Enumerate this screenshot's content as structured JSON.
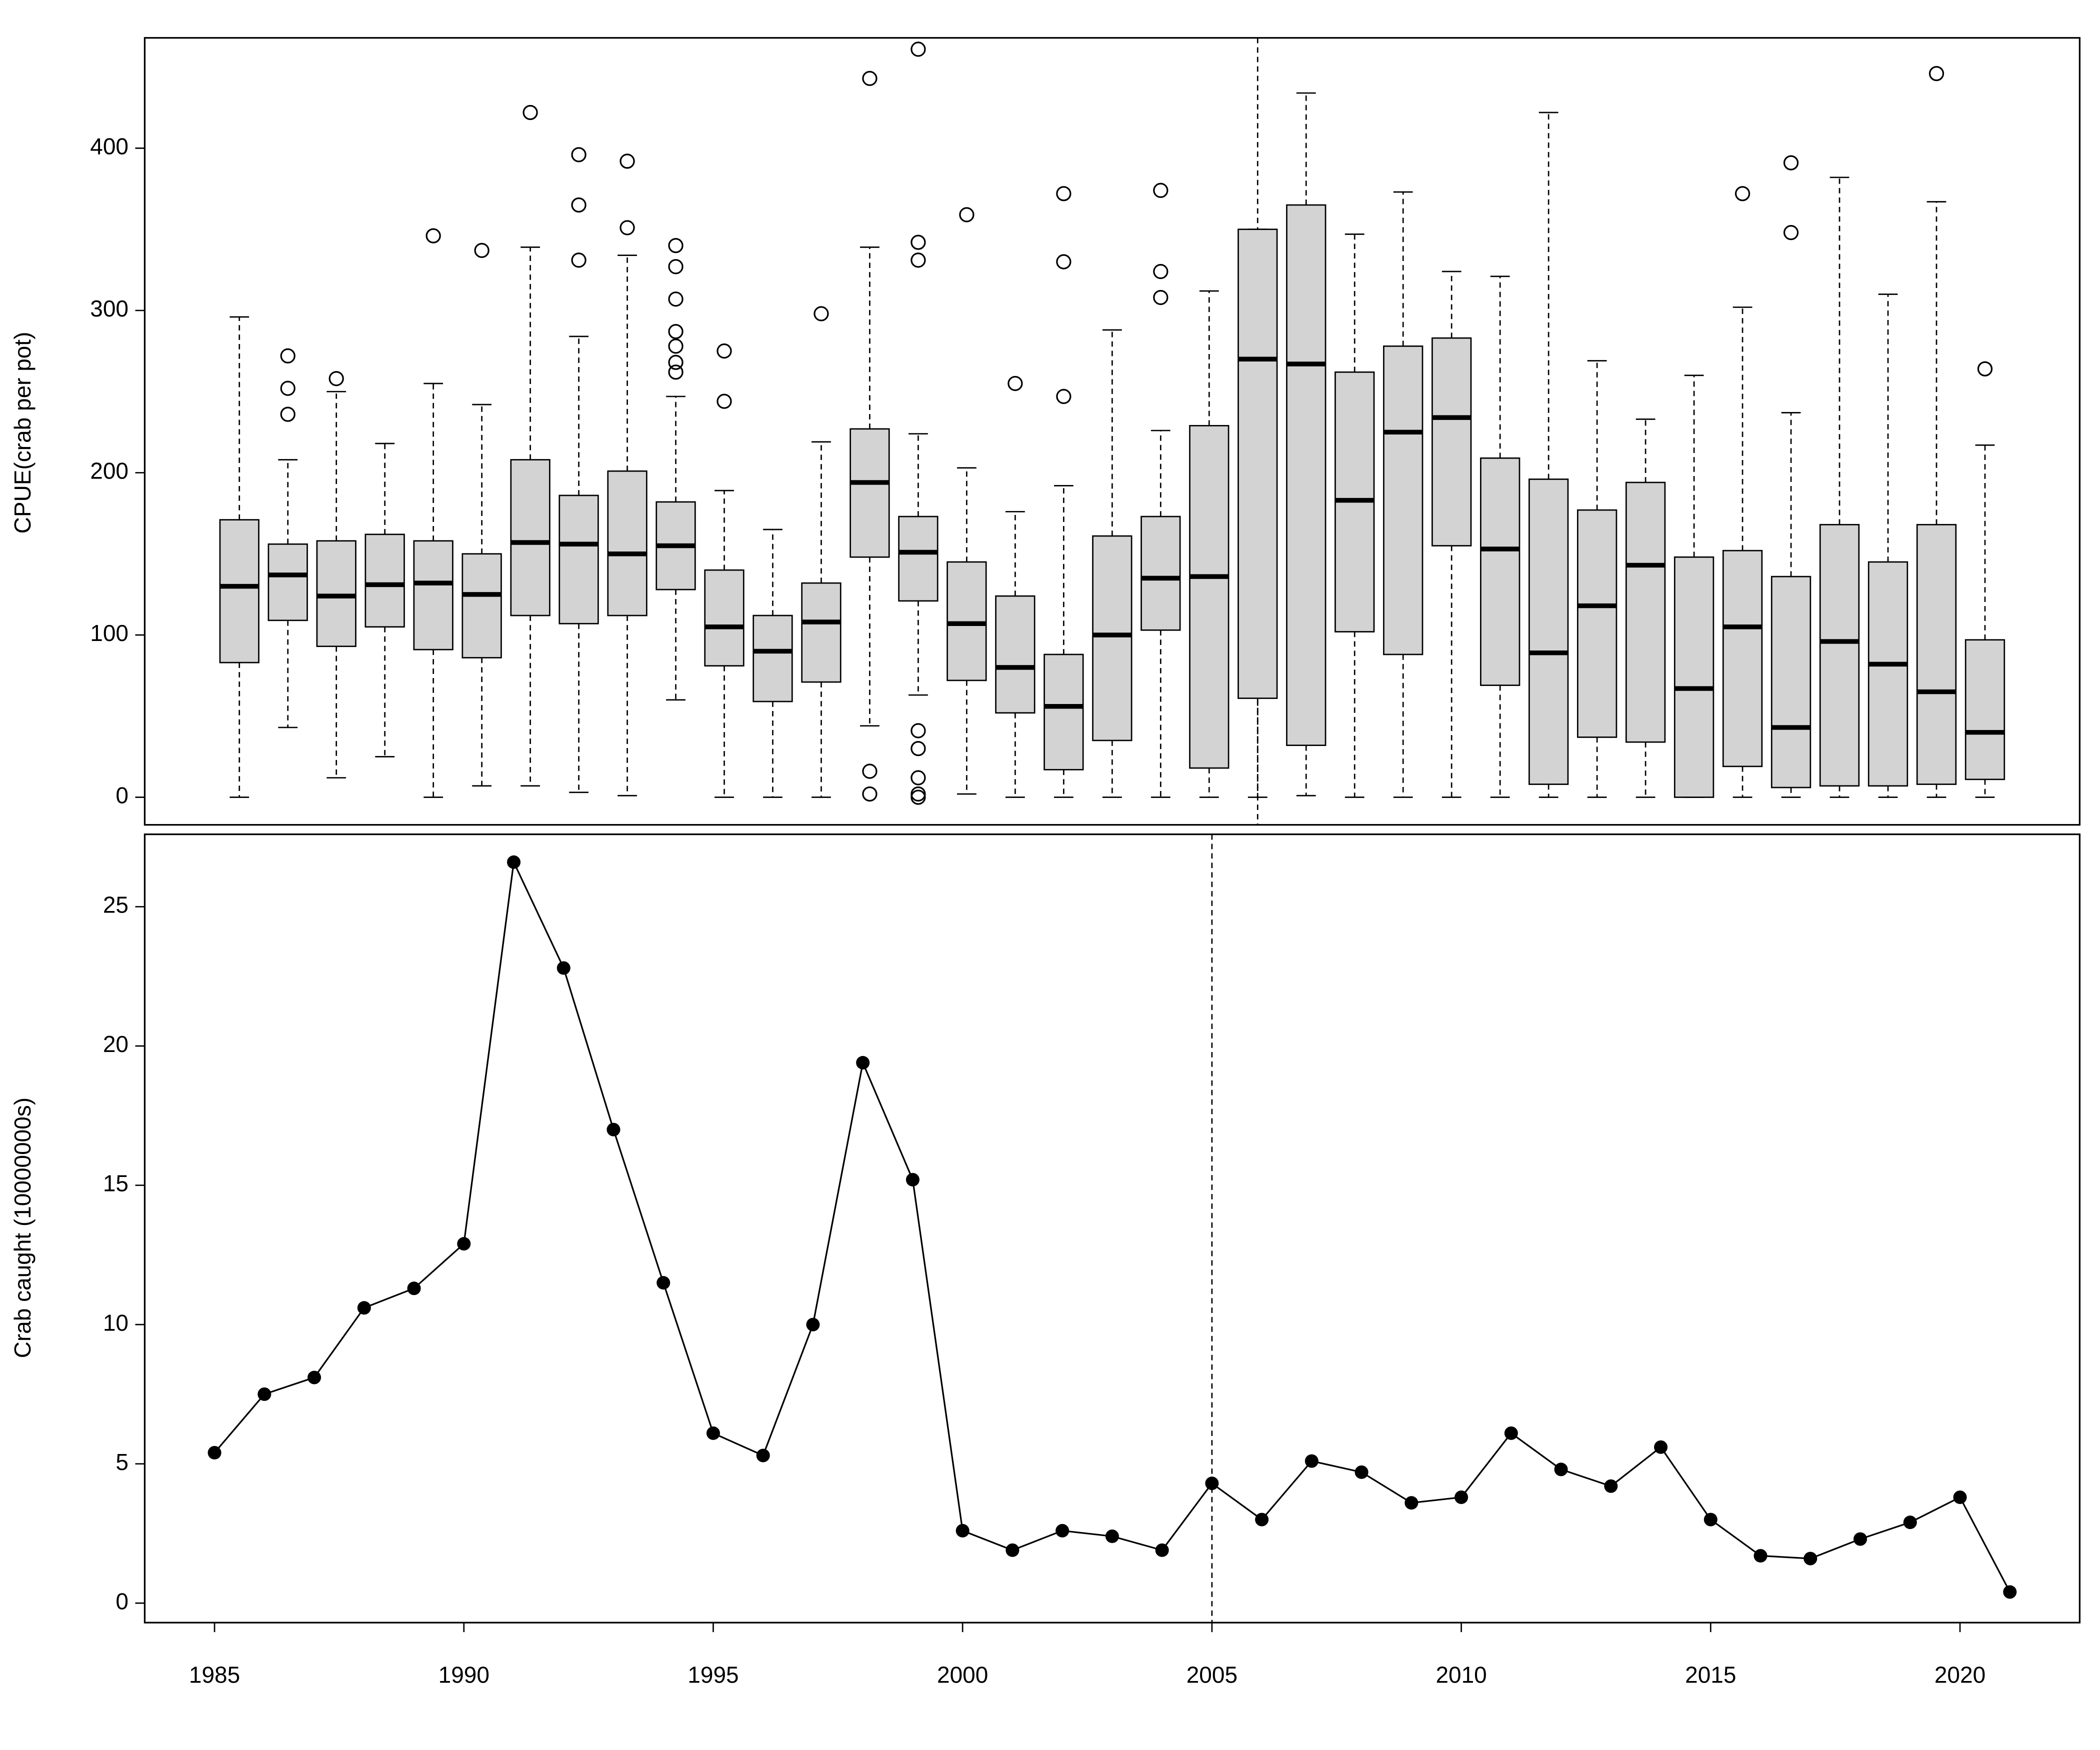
{
  "chart_data": [
    {
      "type": "boxplot",
      "ylabel": "CPUE(crab per pot)",
      "color": "#d3d3d3",
      "ylim": [
        -17,
        468
      ],
      "yticks": [
        0,
        100,
        200,
        300,
        400
      ],
      "vline_index": 21,
      "categories": [
        null,
        null,
        null,
        null,
        null,
        null,
        null,
        null,
        null,
        null,
        null,
        null,
        null,
        null,
        null,
        null,
        null,
        null,
        null,
        null,
        null,
        null,
        null,
        null,
        null,
        null,
        null,
        null,
        null,
        null,
        null,
        null,
        null,
        null,
        null,
        null,
        null
      ],
      "boxes": [
        {
          "low": 0,
          "q1": 83,
          "median": 130,
          "q3": 171,
          "high": 296,
          "outliers": []
        },
        {
          "low": 43,
          "q1": 109,
          "median": 137,
          "q3": 156,
          "high": 208,
          "outliers": [
            272,
            252,
            236
          ]
        },
        {
          "low": 12,
          "q1": 93,
          "median": 124,
          "q3": 158,
          "high": 250,
          "outliers": [
            258
          ]
        },
        {
          "low": 25,
          "q1": 105,
          "median": 131,
          "q3": 162,
          "high": 218,
          "outliers": []
        },
        {
          "low": 0,
          "q1": 91,
          "median": 132,
          "q3": 158,
          "high": 255,
          "outliers": [
            346
          ]
        },
        {
          "low": 7,
          "q1": 86,
          "median": 125,
          "q3": 150,
          "high": 242,
          "outliers": [
            337
          ]
        },
        {
          "low": 7,
          "q1": 112,
          "median": 157,
          "q3": 208,
          "high": 339,
          "outliers": [
            422
          ]
        },
        {
          "low": 3,
          "q1": 107,
          "median": 156,
          "q3": 186,
          "high": 284,
          "outliers": [
            396,
            365,
            331
          ]
        },
        {
          "low": 1,
          "q1": 112,
          "median": 150,
          "q3": 201,
          "high": 334,
          "outliers": [
            392,
            351
          ]
        },
        {
          "low": 60,
          "q1": 128,
          "median": 155,
          "q3": 182,
          "high": 247,
          "outliers": [
            340,
            327,
            307,
            287,
            278,
            268,
            262
          ]
        },
        {
          "low": 0,
          "q1": 81,
          "median": 105,
          "q3": 140,
          "high": 189,
          "outliers": [
            275,
            244
          ]
        },
        {
          "low": 0,
          "q1": 59,
          "median": 90,
          "q3": 112,
          "high": 165,
          "outliers": []
        },
        {
          "low": 0,
          "q1": 71,
          "median": 108,
          "q3": 132,
          "high": 219,
          "outliers": [
            298
          ]
        },
        {
          "low": 44,
          "q1": 148,
          "median": 194,
          "q3": 227,
          "high": 339,
          "outliers": [
            443,
            16,
            2
          ]
        },
        {
          "low": 63,
          "q1": 121,
          "median": 151,
          "q3": 173,
          "high": 224,
          "outliers": [
            461,
            342,
            331,
            41,
            30,
            12,
            2,
            0
          ]
        },
        {
          "low": 2,
          "q1": 72,
          "median": 107,
          "q3": 145,
          "high": 203,
          "outliers": [
            359
          ]
        },
        {
          "low": 0,
          "q1": 52,
          "median": 80,
          "q3": 124,
          "high": 176,
          "outliers": [
            255
          ]
        },
        {
          "low": 0,
          "q1": 17,
          "median": 56,
          "q3": 88,
          "high": 192,
          "outliers": [
            372,
            330,
            247
          ]
        },
        {
          "low": 0,
          "q1": 35,
          "median": 100,
          "q3": 161,
          "high": 288,
          "outliers": []
        },
        {
          "low": 0,
          "q1": 103,
          "median": 135,
          "q3": 173,
          "high": 226,
          "outliers": [
            374,
            324,
            308
          ]
        },
        {
          "low": 0,
          "q1": 18,
          "median": 136,
          "q3": 229,
          "high": 312,
          "outliers": []
        },
        {
          "low": 0,
          "q1": 61,
          "median": 270,
          "q3": 350,
          "high": 350,
          "outliers": []
        },
        {
          "low": 1,
          "q1": 32,
          "median": 267,
          "q3": 365,
          "high": 434,
          "outliers": []
        },
        {
          "low": 0,
          "q1": 102,
          "median": 183,
          "q3": 262,
          "high": 347,
          "outliers": []
        },
        {
          "low": 0,
          "q1": 88,
          "median": 225,
          "q3": 278,
          "high": 373,
          "outliers": []
        },
        {
          "low": 0,
          "q1": 155,
          "median": 234,
          "q3": 283,
          "high": 324,
          "outliers": []
        },
        {
          "low": 0,
          "q1": 69,
          "median": 153,
          "q3": 209,
          "high": 321,
          "outliers": []
        },
        {
          "low": 0,
          "q1": 8,
          "median": 89,
          "q3": 196,
          "high": 422,
          "outliers": []
        },
        {
          "low": 0,
          "q1": 37,
          "median": 118,
          "q3": 177,
          "high": 269,
          "outliers": []
        },
        {
          "low": 0,
          "q1": 34,
          "median": 143,
          "q3": 194,
          "high": 233,
          "outliers": []
        },
        {
          "low": 0,
          "q1": 0,
          "median": 67,
          "q3": 148,
          "high": 260,
          "outliers": []
        },
        {
          "low": 0,
          "q1": 19,
          "median": 105,
          "q3": 152,
          "high": 302,
          "outliers": [
            372
          ]
        },
        {
          "low": 0,
          "q1": 6,
          "median": 43,
          "q3": 136,
          "high": 237,
          "outliers": [
            391,
            348
          ]
        },
        {
          "low": 0,
          "q1": 7,
          "median": 96,
          "q3": 168,
          "high": 382,
          "outliers": []
        },
        {
          "low": 0,
          "q1": 7,
          "median": 82,
          "q3": 145,
          "high": 310,
          "outliers": []
        },
        {
          "low": 0,
          "q1": 8,
          "median": 65,
          "q3": 168,
          "high": 367,
          "outliers": [
            446
          ]
        },
        {
          "low": 0,
          "q1": 11,
          "median": 40,
          "q3": 97,
          "high": 217,
          "outliers": [
            264
          ]
        }
      ]
    },
    {
      "type": "line",
      "ylabel": "Crab caught (10000000s)",
      "color": "#000000",
      "xlim": [
        1983.6,
        2022.4
      ],
      "xticks": [
        1985,
        1990,
        1995,
        2000,
        2005,
        2010,
        2015,
        2020
      ],
      "ylim": [
        -0.7,
        27.6
      ],
      "yticks": [
        0,
        5,
        10,
        15,
        20,
        25
      ],
      "vline": 2005,
      "x": [
        1985,
        1986,
        1987,
        1988,
        1989,
        1990,
        1991,
        1992,
        1993,
        1994,
        1995,
        1996,
        1997,
        1998,
        1999,
        2000,
        2001,
        2002,
        2003,
        2004,
        2005,
        2006,
        2007,
        2008,
        2009,
        2010,
        2011,
        2012,
        2013,
        2014,
        2015,
        2016,
        2017,
        2018,
        2019,
        2020,
        2021
      ],
      "values": [
        5.4,
        7.5,
        8.1,
        10.6,
        11.3,
        12.9,
        26.6,
        22.8,
        17.0,
        11.5,
        6.1,
        5.3,
        10.0,
        19.4,
        15.2,
        2.6,
        1.9,
        2.6,
        2.4,
        1.9,
        4.3,
        3.0,
        5.1,
        4.7,
        3.6,
        3.8,
        6.1,
        4.8,
        4.2,
        5.6,
        3.0,
        1.7,
        1.6,
        2.3,
        2.9,
        3.8,
        0.4
      ]
    }
  ]
}
